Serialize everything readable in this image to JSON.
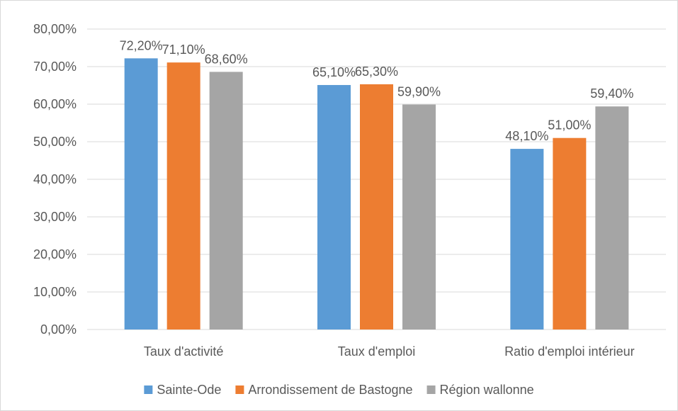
{
  "chart_data": {
    "type": "bar",
    "categories": [
      "Taux d'activité",
      "Taux d'emploi",
      "Ratio d'emploi intérieur"
    ],
    "series": [
      {
        "name": "Sainte-Ode",
        "color": "#5b9bd5",
        "values": [
          72.2,
          65.1,
          48.1
        ],
        "labels": [
          "72,20%",
          "65,10%",
          "48,10%"
        ]
      },
      {
        "name": "Arrondissement de Bastogne",
        "color": "#ed7d31",
        "values": [
          71.1,
          65.3,
          51.0
        ],
        "labels": [
          "71,10%",
          "65,30%",
          "51,00%"
        ]
      },
      {
        "name": "Région wallonne",
        "color": "#a5a5a5",
        "values": [
          68.6,
          59.9,
          59.4
        ],
        "labels": [
          "68,60%",
          "59,90%",
          "59,40%"
        ]
      }
    ],
    "ylim": [
      0,
      80
    ],
    "yticks": [
      0,
      10,
      20,
      30,
      40,
      50,
      60,
      70,
      80
    ],
    "ytick_labels": [
      "0,00%",
      "10,00%",
      "20,00%",
      "30,00%",
      "40,00%",
      "50,00%",
      "60,00%",
      "70,00%",
      "80,00%"
    ],
    "grid": true,
    "legend_position": "bottom"
  }
}
